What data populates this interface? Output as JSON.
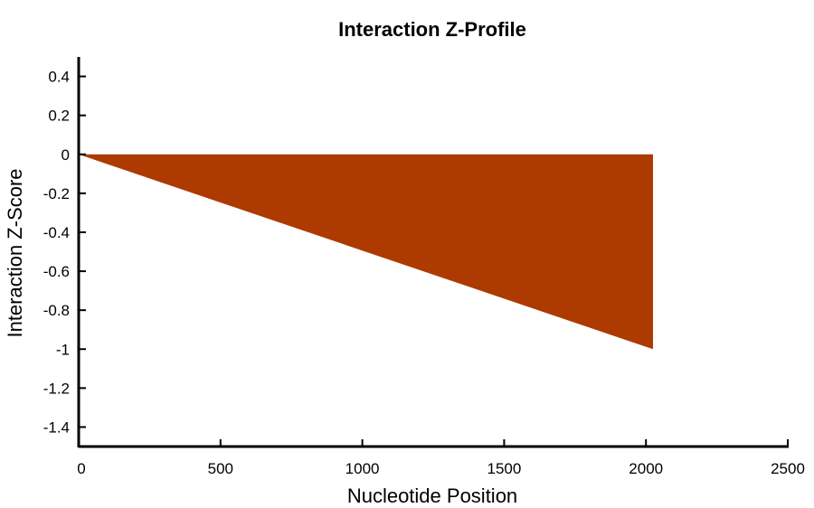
{
  "chart_data": {
    "type": "area",
    "title": "Interaction Z-Profile",
    "xlabel": "Nucleotide Position",
    "ylabel": "Interaction Z-Score",
    "xlim": [
      0,
      2500
    ],
    "ylim": [
      -1.5,
      0.5
    ],
    "x_ticks": [
      0,
      500,
      1000,
      1500,
      2000,
      2500
    ],
    "y_ticks": [
      0.4,
      0.2,
      0,
      -0.2,
      -0.4,
      -0.6,
      -0.8,
      -1,
      -1.2,
      -1.4
    ],
    "grid": false,
    "series": [
      {
        "x": [
          0,
          2025,
          2025
        ],
        "y": [
          0,
          -1,
          0
        ],
        "color": "#ad3a00"
      }
    ]
  }
}
